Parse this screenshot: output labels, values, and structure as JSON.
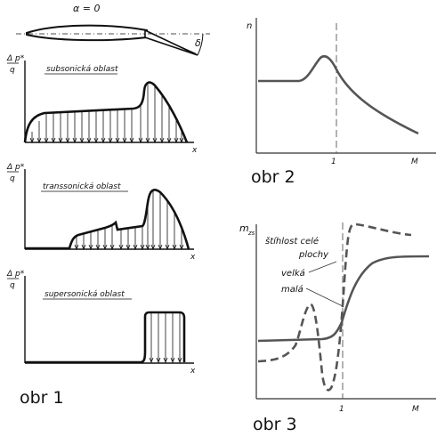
{
  "figure1": {
    "caption": "obr 1",
    "airfoil_label": "α = 0",
    "flap_label": "δ",
    "ylabel_num": "Δ p*",
    "ylabel_den": "q",
    "xlabel": "x",
    "panels": [
      {
        "title": "subsonická oblast"
      },
      {
        "title": "transsonická oblast"
      },
      {
        "title": "supersonická oblast"
      }
    ]
  },
  "figure2": {
    "caption": "obr 2",
    "ylabel": "n",
    "xlabel": "M",
    "tick": "1"
  },
  "figure3": {
    "caption": "obr 3",
    "ylabel": "m",
    "ylabel_sub": "zs",
    "xlabel": "M",
    "tick": "1",
    "legend_title_1": "štíhlost celé",
    "legend_title_2": "plochy",
    "legend_large": "velká",
    "legend_small": "malá"
  },
  "colors": {
    "figure1_ink": "#111111",
    "curve": "#555555",
    "axis": "#333333"
  }
}
